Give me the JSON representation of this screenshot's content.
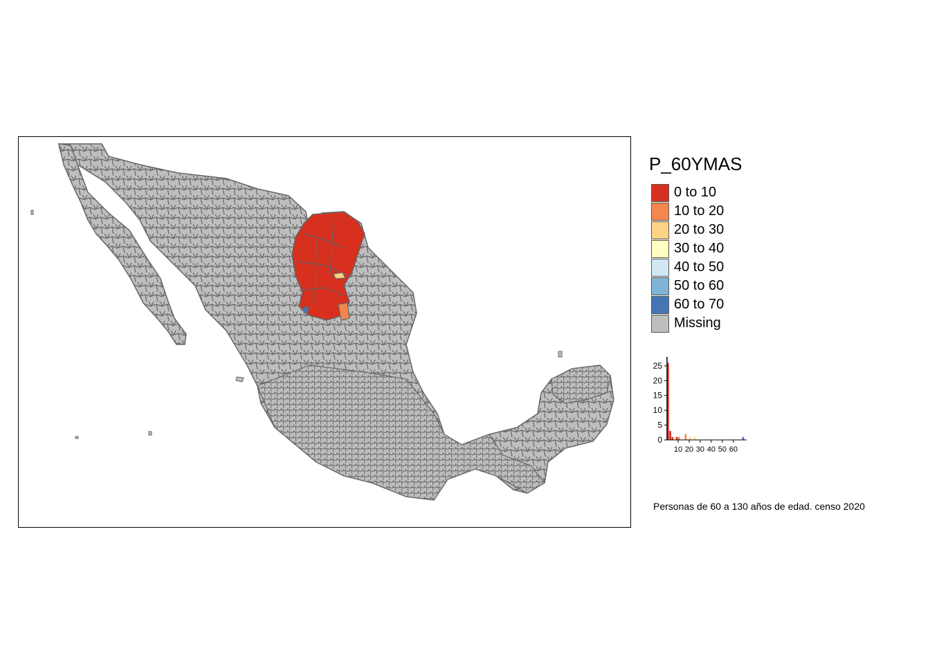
{
  "legend": {
    "title": "P_60YMAS",
    "items": [
      {
        "label": "0 to 10",
        "color": "#d7301f"
      },
      {
        "label": "10 to 20",
        "color": "#f4874d"
      },
      {
        "label": "20 to 30",
        "color": "#fdd385"
      },
      {
        "label": "30 to 40",
        "color": "#ffffc0"
      },
      {
        "label": "40 to 50",
        "color": "#d1e7f1"
      },
      {
        "label": "50 to 60",
        "color": "#80b4d7"
      },
      {
        "label": "60 to 70",
        "color": "#4575b4"
      },
      {
        "label": "Missing",
        "color": "#bebebe"
      }
    ]
  },
  "histogram": {
    "y_ticks": [
      "0",
      "5",
      "10",
      "15",
      "20",
      "25"
    ],
    "x_ticks": [
      "10",
      "20",
      "30",
      "40",
      "50",
      "60"
    ],
    "ylim": [
      0,
      28
    ],
    "xlim": [
      0,
      72
    ],
    "bins": [
      {
        "x0": 0,
        "x1": 2,
        "count": 26,
        "color": "#d7301f"
      },
      {
        "x0": 2,
        "x1": 4,
        "count": 3,
        "color": "#d7301f"
      },
      {
        "x0": 4,
        "x1": 6,
        "count": 1,
        "color": "#d7301f"
      },
      {
        "x0": 8,
        "x1": 10,
        "count": 1,
        "color": "#d7301f"
      },
      {
        "x0": 10,
        "x1": 12,
        "count": 1,
        "color": "#f4874d"
      },
      {
        "x0": 16,
        "x1": 18,
        "count": 2,
        "color": "#f4874d"
      },
      {
        "x0": 20,
        "x1": 22,
        "count": 1,
        "color": "#fdd385"
      },
      {
        "x0": 24,
        "x1": 26,
        "count": 1,
        "color": "#fdd385"
      },
      {
        "x0": 68,
        "x1": 70,
        "count": 1,
        "color": "#4575b4"
      }
    ]
  },
  "caption": "Personas de 60 a 130 años de edad. censo 2020",
  "colors": {
    "border": "#666666",
    "missing": "#bebebe",
    "frame": "#000000"
  }
}
